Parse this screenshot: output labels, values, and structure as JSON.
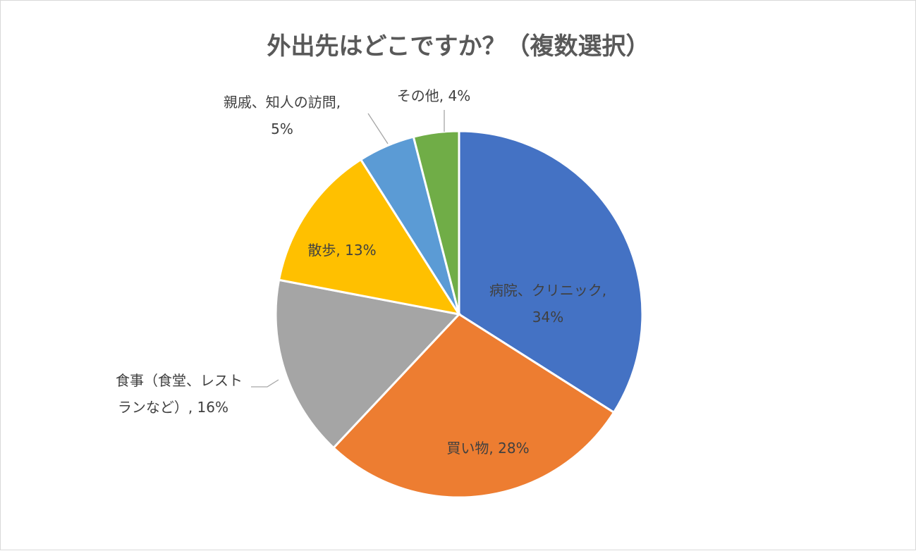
{
  "chart_data": {
    "type": "pie",
    "title": "外出先はどこですか？（複数選択）",
    "slices": [
      {
        "label": "病院、クリニック",
        "value": 34,
        "value_label": "34%",
        "color": "#4472C4"
      },
      {
        "label": "買い物",
        "value": 28,
        "value_label": "28%",
        "color": "#ED7D31"
      },
      {
        "label": "食事（食堂、レストランなど）",
        "value": 16,
        "value_label": "16%",
        "color": "#A5A5A5"
      },
      {
        "label": "散歩",
        "value": 13,
        "value_label": "13%",
        "color": "#FFC000"
      },
      {
        "label": "親戚、知人の訪問",
        "value": 5,
        "value_label": "5%",
        "color": "#5B9BD5"
      },
      {
        "label": "その他",
        "value": 4,
        "value_label": "4%",
        "color": "#70AD47"
      }
    ],
    "data_labels": [
      {
        "lines": [
          "病院、クリニック,",
          "34%"
        ]
      },
      {
        "lines": [
          "買い物, 28%"
        ]
      },
      {
        "lines": [
          "食事（食堂、レスト",
          "ランなど）, 16%"
        ]
      },
      {
        "lines": [
          "散歩, 13%"
        ]
      },
      {
        "lines": [
          "親戚、知人の訪問,",
          "5%"
        ]
      },
      {
        "lines": [
          "その他, 4%"
        ]
      }
    ],
    "start": "12 o'clock",
    "direction": "clockwise",
    "legend": "none"
  }
}
